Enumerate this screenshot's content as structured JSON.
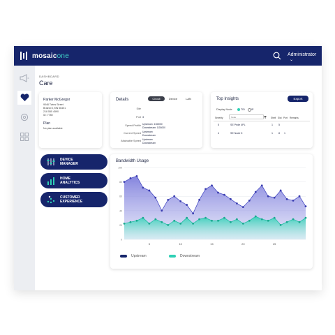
{
  "header": {
    "brand": "mosaic",
    "brand_accent": "one",
    "user_label": "Administrator"
  },
  "page": {
    "breadcrumb": "DASHBOARD",
    "title": "Care"
  },
  "subscriber": {
    "name": "Parker McGregor",
    "address_line1": "9046 Twins Street",
    "address_line2": "Brainerd, MN 56401",
    "phone": "218 555 4590",
    "id": "ID: 7780",
    "plan_label": "Plan",
    "plan_value": "No plan available"
  },
  "details": {
    "title": "Details",
    "tabs": [
      {
        "label": "Circuit"
      },
      {
        "label": "Device"
      },
      {
        "label": "LAN"
      }
    ],
    "rows": [
      {
        "label": "Site",
        "value": "",
        "value2": ""
      },
      {
        "label": "Port",
        "value": "3",
        "value2": ""
      },
      {
        "label": "Speed Profile",
        "value": "Upstream: 1G8000",
        "value2": "Downstream: 1G8000"
      },
      {
        "label": "Current Speed",
        "value": "Upstream",
        "value2": "Downstream"
      },
      {
        "label": "Attainable Speed",
        "value": "Upstream",
        "value2": "Downstream"
      }
    ]
  },
  "insights": {
    "title": "Top Insights",
    "export_label": "Export",
    "mode_label": "Display Node",
    "mode_options": [
      {
        "label": "TID"
      },
      {
        "label": "IP"
      }
    ],
    "selected_mode": "TID",
    "filter_placeholder": "Node",
    "columns": [
      "Severity",
      "Node",
      "Shelf",
      "Slot",
      "Port",
      "Remarks"
    ],
    "rows": [
      [
        "5",
        "SE Pride 4PL",
        "1",
        "5",
        ""
      ],
      [
        "4",
        "SE Node 5",
        "1",
        "8",
        "1"
      ]
    ]
  },
  "nav_buttons": [
    {
      "label_line1": "DEVICE",
      "label_line2": "MANAGER",
      "icon": "sliders-icon"
    },
    {
      "label_line1": "HOME",
      "label_line2": "ANALYTICS",
      "icon": "bar-chart-icon"
    },
    {
      "label_line1": "CUSTOMER",
      "label_line2": "EXPERIENCE",
      "icon": "dots-icon"
    }
  ],
  "chart_data": {
    "type": "area",
    "title": "Bandwidth Usage",
    "x_ticks": [
      "5",
      "10",
      "15",
      "20",
      "25"
    ],
    "y_ticks": [
      "100",
      "80",
      "60",
      "40",
      "20",
      "0"
    ],
    "ylim": [
      0,
      100
    ],
    "x": [
      1,
      2,
      3,
      4,
      5,
      6,
      7,
      8,
      9,
      10,
      11,
      12,
      13,
      14,
      15,
      16,
      17,
      18,
      19,
      20,
      21,
      22,
      23,
      24,
      25,
      26,
      27,
      28,
      29,
      30
    ],
    "series": [
      {
        "name": "Upstream",
        "color": "#3a3db0",
        "values": [
          80,
          85,
          88,
          72,
          68,
          58,
          40,
          55,
          60,
          53,
          48,
          36,
          55,
          70,
          75,
          65,
          62,
          56,
          50,
          45,
          54,
          66,
          75,
          60,
          58,
          68,
          56,
          54,
          60,
          46
        ]
      },
      {
        "name": "Downstream",
        "color": "#2ed0b5",
        "values": [
          22,
          24,
          26,
          30,
          22,
          28,
          24,
          20,
          26,
          22,
          30,
          22,
          28,
          30,
          26,
          26,
          30,
          24,
          28,
          22,
          26,
          32,
          28,
          26,
          30,
          20,
          24,
          28,
          24,
          30
        ]
      }
    ],
    "legend_position": "bottom-left",
    "grid": true
  }
}
